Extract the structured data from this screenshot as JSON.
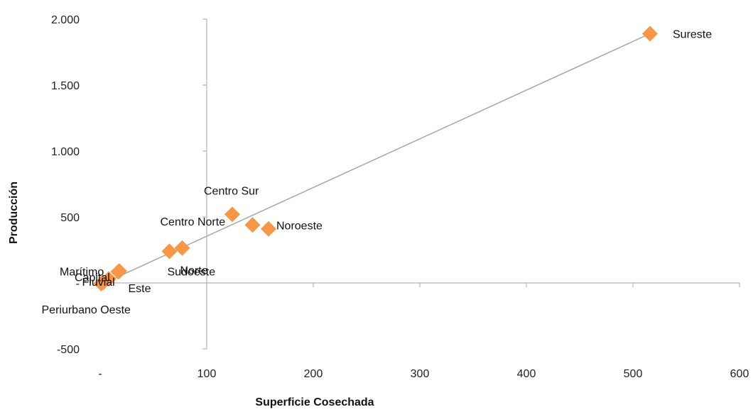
{
  "chart_data": {
    "type": "scatter",
    "xlabel": "Superficie Cosechada",
    "ylabel": "Producción",
    "xlim": [
      0,
      600
    ],
    "ylim": [
      -500,
      2000
    ],
    "x_ticks": [
      {
        "value": 0,
        "label": "-"
      },
      {
        "value": 100,
        "label": "100"
      },
      {
        "value": 200,
        "label": "200"
      },
      {
        "value": 300,
        "label": "300"
      },
      {
        "value": 400,
        "label": "400"
      },
      {
        "value": 500,
        "label": "500"
      },
      {
        "value": 600,
        "label": "600"
      }
    ],
    "y_ticks": [
      {
        "value": -500,
        "label": "-500"
      },
      {
        "value": 0,
        "label": "-"
      },
      {
        "value": 500,
        "label": "500"
      },
      {
        "value": 1000,
        "label": "1.000"
      },
      {
        "value": 1500,
        "label": "1.500"
      },
      {
        "value": 2000,
        "label": "2.000"
      }
    ],
    "series": [
      {
        "color": "#F79646",
        "marker": "diamond",
        "points": [
          {
            "label": "Sureste",
            "x": 516,
            "y": 1890
          },
          {
            "label": "Centro Sur",
            "x": 124,
            "y": 520
          },
          {
            "label": "Centro Norte",
            "x": 143,
            "y": 440
          },
          {
            "label": "Noroeste",
            "x": 158,
            "y": 410
          },
          {
            "label": "Sudoeste",
            "x": 77,
            "y": 265
          },
          {
            "label": "Norte",
            "x": 65,
            "y": 240
          },
          {
            "label": "Marítimo",
            "x": 18,
            "y": 90
          },
          {
            "label": "Capital",
            "x": 8,
            "y": 30
          },
          {
            "label": "Este",
            "x": 17,
            "y": 85
          },
          {
            "label": "Fluvial",
            "x": 3,
            "y": 5
          },
          {
            "label": "Periurbano Oeste",
            "x": 1,
            "y": -5
          }
        ]
      }
    ],
    "trendline": {
      "type": "linear",
      "color": "#A6A6A6",
      "from": {
        "x": 0,
        "y": -15
      },
      "to": {
        "x": 516,
        "y": 1890
      }
    },
    "grid": false,
    "legend": "none"
  }
}
